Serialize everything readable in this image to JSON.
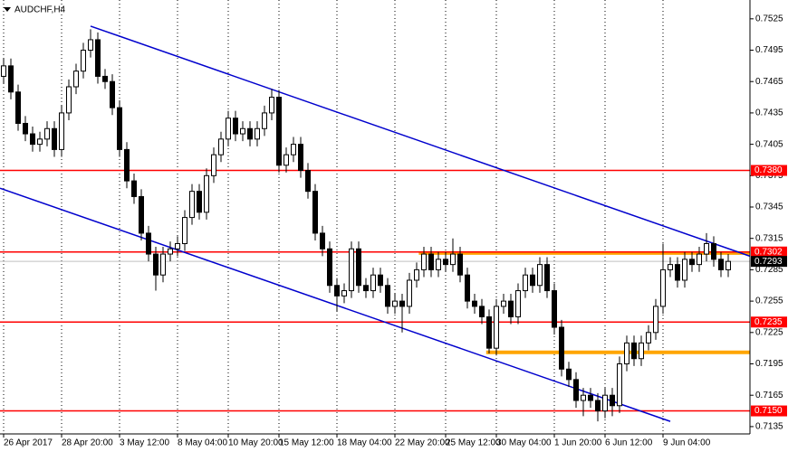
{
  "chart_data": {
    "type": "candlestick",
    "title": "AUDCHF,H4",
    "ohlc": [
      [
        0.747,
        0.7487,
        0.7463,
        0.748
      ],
      [
        0.748,
        0.7487,
        0.7448,
        0.7455
      ],
      [
        0.7455,
        0.7462,
        0.7418,
        0.7425
      ],
      [
        0.7425,
        0.7432,
        0.7408,
        0.7415
      ],
      [
        0.7415,
        0.7422,
        0.7398,
        0.7405
      ],
      [
        0.7405,
        0.7417,
        0.7398,
        0.741
      ],
      [
        0.741,
        0.7427,
        0.7403,
        0.742
      ],
      [
        0.742,
        0.7427,
        0.7393,
        0.74
      ],
      [
        0.74,
        0.7442,
        0.7393,
        0.7435
      ],
      [
        0.7435,
        0.7467,
        0.7428,
        0.746
      ],
      [
        0.746,
        0.7482,
        0.7453,
        0.7475
      ],
      [
        0.7475,
        0.7502,
        0.7468,
        0.7495
      ],
      [
        0.7495,
        0.7515,
        0.7488,
        0.7505
      ],
      [
        0.7505,
        0.7512,
        0.7463,
        0.747
      ],
      [
        0.747,
        0.7477,
        0.7458,
        0.7465
      ],
      [
        0.7465,
        0.7472,
        0.7433,
        0.744
      ],
      [
        0.744,
        0.7447,
        0.7393,
        0.74
      ],
      [
        0.74,
        0.7407,
        0.7363,
        0.737
      ],
      [
        0.737,
        0.7377,
        0.7348,
        0.7355
      ],
      [
        0.7355,
        0.7362,
        0.7313,
        0.732
      ],
      [
        0.732,
        0.7327,
        0.7293,
        0.73
      ],
      [
        0.73,
        0.7307,
        0.7265,
        0.728
      ],
      [
        0.728,
        0.7307,
        0.7273,
        0.73
      ],
      [
        0.73,
        0.7312,
        0.7293,
        0.7305
      ],
      [
        0.7305,
        0.7317,
        0.7298,
        0.731
      ],
      [
        0.731,
        0.7342,
        0.7303,
        0.7335
      ],
      [
        0.7335,
        0.7367,
        0.7328,
        0.736
      ],
      [
        0.736,
        0.7367,
        0.7333,
        0.734
      ],
      [
        0.734,
        0.7382,
        0.7333,
        0.7375
      ],
      [
        0.7375,
        0.7402,
        0.7368,
        0.7395
      ],
      [
        0.7395,
        0.7417,
        0.7388,
        0.741
      ],
      [
        0.741,
        0.7437,
        0.7403,
        0.743
      ],
      [
        0.743,
        0.7437,
        0.7408,
        0.7415
      ],
      [
        0.7415,
        0.7427,
        0.7408,
        0.742
      ],
      [
        0.742,
        0.7427,
        0.7403,
        0.741
      ],
      [
        0.741,
        0.7427,
        0.7403,
        0.742
      ],
      [
        0.742,
        0.7442,
        0.7413,
        0.7435
      ],
      [
        0.7435,
        0.7458,
        0.7428,
        0.745
      ],
      [
        0.745,
        0.7457,
        0.7378,
        0.7385
      ],
      [
        0.7385,
        0.7402,
        0.7378,
        0.7395
      ],
      [
        0.7395,
        0.7412,
        0.7388,
        0.7405
      ],
      [
        0.7405,
        0.7412,
        0.7373,
        0.738
      ],
      [
        0.738,
        0.7387,
        0.7353,
        0.736
      ],
      [
        0.736,
        0.7367,
        0.7313,
        0.732
      ],
      [
        0.732,
        0.7327,
        0.7298,
        0.7305
      ],
      [
        0.7305,
        0.7312,
        0.7263,
        0.727
      ],
      [
        0.727,
        0.7277,
        0.7245,
        0.726
      ],
      [
        0.726,
        0.7272,
        0.7253,
        0.7265
      ],
      [
        0.7265,
        0.7312,
        0.7258,
        0.7305
      ],
      [
        0.7305,
        0.7312,
        0.7263,
        0.727
      ],
      [
        0.727,
        0.7277,
        0.7258,
        0.7265
      ],
      [
        0.7265,
        0.7287,
        0.7258,
        0.728
      ],
      [
        0.728,
        0.7287,
        0.7263,
        0.727
      ],
      [
        0.727,
        0.7277,
        0.7243,
        0.725
      ],
      [
        0.725,
        0.7262,
        0.7243,
        0.7255
      ],
      [
        0.7255,
        0.7262,
        0.7225,
        0.725
      ],
      [
        0.725,
        0.7282,
        0.7243,
        0.7275
      ],
      [
        0.7275,
        0.7292,
        0.7268,
        0.7285
      ],
      [
        0.7285,
        0.7307,
        0.7278,
        0.73
      ],
      [
        0.73,
        0.7307,
        0.7278,
        0.7285
      ],
      [
        0.7285,
        0.7302,
        0.7278,
        0.7295
      ],
      [
        0.7295,
        0.7302,
        0.7283,
        0.729
      ],
      [
        0.729,
        0.7315,
        0.7283,
        0.73
      ],
      [
        0.73,
        0.7307,
        0.7273,
        0.728
      ],
      [
        0.728,
        0.7287,
        0.7248,
        0.7255
      ],
      [
        0.7255,
        0.7262,
        0.7243,
        0.725
      ],
      [
        0.725,
        0.7257,
        0.7233,
        0.724
      ],
      [
        0.724,
        0.7247,
        0.7205,
        0.721
      ],
      [
        0.721,
        0.7257,
        0.7203,
        0.725
      ],
      [
        0.725,
        0.7262,
        0.7243,
        0.7255
      ],
      [
        0.7255,
        0.7262,
        0.7233,
        0.724
      ],
      [
        0.724,
        0.7272,
        0.7233,
        0.7265
      ],
      [
        0.7265,
        0.7287,
        0.7258,
        0.728
      ],
      [
        0.728,
        0.7287,
        0.7263,
        0.727
      ],
      [
        0.727,
        0.7297,
        0.7263,
        0.729
      ],
      [
        0.729,
        0.7297,
        0.7258,
        0.7265
      ],
      [
        0.7265,
        0.7272,
        0.7223,
        0.723
      ],
      [
        0.723,
        0.7237,
        0.7183,
        0.719
      ],
      [
        0.719,
        0.7197,
        0.7173,
        0.718
      ],
      [
        0.718,
        0.7187,
        0.7153,
        0.716
      ],
      [
        0.716,
        0.7172,
        0.7145,
        0.7165
      ],
      [
        0.7165,
        0.7172,
        0.7153,
        0.716
      ],
      [
        0.716,
        0.7167,
        0.714,
        0.715
      ],
      [
        0.715,
        0.7172,
        0.7143,
        0.7165
      ],
      [
        0.7165,
        0.7172,
        0.7145,
        0.7155
      ],
      [
        0.7155,
        0.7202,
        0.7148,
        0.7195
      ],
      [
        0.7195,
        0.7222,
        0.7188,
        0.7215
      ],
      [
        0.7215,
        0.7222,
        0.7193,
        0.72
      ],
      [
        0.72,
        0.7222,
        0.7193,
        0.7215
      ],
      [
        0.7215,
        0.7232,
        0.7208,
        0.7225
      ],
      [
        0.7225,
        0.7257,
        0.7218,
        0.725
      ],
      [
        0.725,
        0.731,
        0.7243,
        0.7285
      ],
      [
        0.7285,
        0.7297,
        0.7278,
        0.729
      ],
      [
        0.729,
        0.7297,
        0.7268,
        0.7275
      ],
      [
        0.7275,
        0.7302,
        0.7268,
        0.7295
      ],
      [
        0.7295,
        0.7302,
        0.7283,
        0.729
      ],
      [
        0.729,
        0.7307,
        0.7283,
        0.73
      ],
      [
        0.73,
        0.732,
        0.7293,
        0.731
      ],
      [
        0.731,
        0.7317,
        0.7288,
        0.7295
      ],
      [
        0.7295,
        0.7302,
        0.7278,
        0.7285
      ],
      [
        0.7285,
        0.73,
        0.7278,
        0.7293
      ]
    ],
    "up_color": "#ffffff",
    "down_color": "#000000",
    "xlim": [
      -0.5,
      103
    ],
    "xticks": [
      {
        "value": 0,
        "label": "26 Apr 2017"
      },
      {
        "value": 8,
        "label": "28 Apr 20:00"
      },
      {
        "value": 16,
        "label": "3 May 12:00"
      },
      {
        "value": 24,
        "label": "8 May 04:00"
      },
      {
        "value": 31,
        "label": "10 May 20:00"
      },
      {
        "value": 38,
        "label": "15 May 12:00"
      },
      {
        "value": 46,
        "label": "18 May 04:00"
      },
      {
        "value": 54,
        "label": "22 May 20:00"
      },
      {
        "value": 61,
        "label": "25 May 12:00"
      },
      {
        "value": 68,
        "label": "30 May 04:00"
      },
      {
        "value": 76,
        "label": "1 Jun 20:00"
      },
      {
        "value": 83,
        "label": "6 Jun 12:00"
      },
      {
        "value": 91,
        "label": "9 Jun 04:00"
      }
    ],
    "ylim": [
      0.7128,
      0.7543
    ],
    "yticks": [
      0.7525,
      0.7495,
      0.7465,
      0.7435,
      0.7405,
      0.7375,
      0.7345,
      0.7315,
      0.7285,
      0.7255,
      0.7225,
      0.7195,
      0.7165,
      0.7135
    ],
    "grid": "x",
    "levels": [
      {
        "value": 0.738,
        "label": "0.7380"
      },
      0.7302,
      0.7235,
      {
        "value": 0.715,
        "label": "0.7150"
      }
    ],
    "level_color": "#ff0000",
    "price": 0.7293,
    "zones": [
      {
        "x": [
          57.3,
          103
        ],
        "y": 0.7301
      },
      {
        "x": [
          66.6,
          103
        ],
        "y": 0.7206
      }
    ],
    "zone_color": "#ffa500",
    "trendlines": [
      {
        "x": [
          12,
          103
        ],
        "y": [
          0.7518,
          0.7298
        ]
      },
      {
        "x": [
          -0.5,
          92
        ],
        "y": [
          0.7363,
          0.714
        ]
      }
    ],
    "trend_color": "#0000cd"
  }
}
